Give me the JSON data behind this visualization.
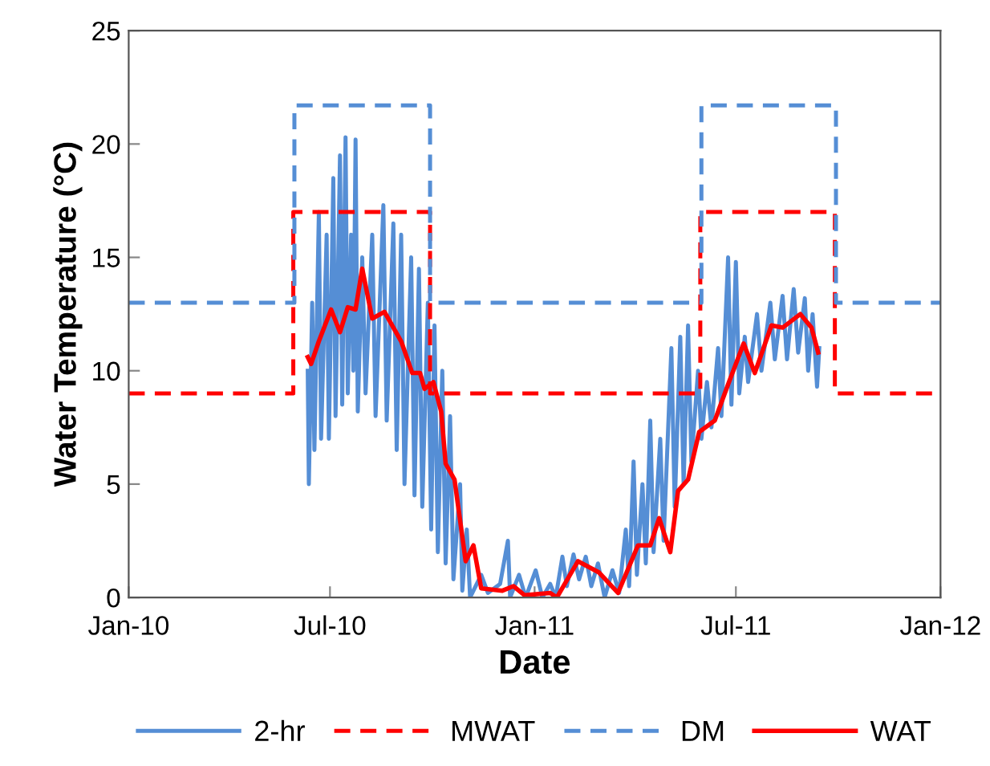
{
  "chart_data": {
    "type": "line",
    "xlabel": "Date",
    "ylabel": "Water Temperature (°C)",
    "xlim": [
      "2010-01-01",
      "2012-01-01"
    ],
    "xticks": [
      {
        "value": "2010-01-01",
        "label": "Jan-10"
      },
      {
        "value": "2010-07-01",
        "label": "Jul-10"
      },
      {
        "value": "2011-01-01",
        "label": "Jan-11"
      },
      {
        "value": "2011-07-01",
        "label": "Jul-11"
      },
      {
        "value": "2012-01-01",
        "label": "Jan-12"
      }
    ],
    "ylim": [
      0,
      25
    ],
    "yticks": [
      0,
      5,
      10,
      15,
      20,
      25
    ],
    "grid": false,
    "legend": "bottom",
    "series": [
      {
        "name": "2-hr",
        "color": "#558ed5",
        "line_style": "solid",
        "x": [
          "2010-06-11",
          "2010-06-12",
          "2010-06-15",
          "2010-06-17",
          "2010-06-21",
          "2010-06-23",
          "2010-06-28",
          "2010-06-30",
          "2010-07-04",
          "2010-07-06",
          "2010-07-10",
          "2010-07-12",
          "2010-07-15",
          "2010-07-17",
          "2010-07-20",
          "2010-07-22",
          "2010-07-24",
          "2010-07-26",
          "2010-07-30",
          "2010-08-02",
          "2010-08-08",
          "2010-08-11",
          "2010-08-18",
          "2010-08-21",
          "2010-08-27",
          "2010-08-30",
          "2010-09-03",
          "2010-09-06",
          "2010-09-12",
          "2010-09-15",
          "2010-09-19",
          "2010-09-22",
          "2010-09-27",
          "2010-09-30",
          "2010-10-03",
          "2010-10-06",
          "2010-10-10",
          "2010-10-13",
          "2010-10-17",
          "2010-10-20",
          "2010-10-26",
          "2010-10-28",
          "2010-11-01",
          "2010-11-04",
          "2010-11-14",
          "2010-11-20",
          "2010-12-01",
          "2010-12-08",
          "2010-12-10",
          "2010-12-18",
          "2010-12-24",
          "2011-01-02",
          "2011-01-08",
          "2011-01-15",
          "2011-01-20",
          "2011-01-26",
          "2011-01-30",
          "2011-02-05",
          "2011-02-10",
          "2011-02-16",
          "2011-02-21",
          "2011-02-27",
          "2011-03-05",
          "2011-03-12",
          "2011-03-18",
          "2011-03-24",
          "2011-03-27",
          "2011-03-31",
          "2011-04-03",
          "2011-04-08",
          "2011-04-11",
          "2011-04-15",
          "2011-04-18",
          "2011-04-24",
          "2011-04-27",
          "2011-05-04",
          "2011-05-07",
          "2011-05-12",
          "2011-05-15",
          "2011-05-19",
          "2011-05-22",
          "2011-05-28",
          "2011-05-31",
          "2011-06-05",
          "2011-06-09",
          "2011-06-15",
          "2011-06-18",
          "2011-06-24",
          "2011-06-27",
          "2011-07-01",
          "2011-07-04",
          "2011-07-09",
          "2011-07-12",
          "2011-07-20",
          "2011-07-24",
          "2011-08-01",
          "2011-08-05",
          "2011-08-12",
          "2011-08-16",
          "2011-08-22",
          "2011-08-26",
          "2011-09-01",
          "2011-09-04",
          "2011-09-08",
          "2011-09-12",
          "2011-09-14"
        ],
        "values": [
          10,
          5,
          13,
          6.5,
          17,
          7,
          16,
          7,
          18.5,
          8,
          19.5,
          8.5,
          20.3,
          9,
          16,
          10,
          20.2,
          8.2,
          15,
          9,
          16,
          8,
          17.3,
          7.8,
          16.5,
          6.5,
          16,
          5,
          15,
          4.5,
          14.5,
          4,
          13,
          3,
          12,
          2,
          10,
          1.5,
          8,
          0.8,
          5,
          0.3,
          3,
          0,
          1,
          0.2,
          0.6,
          2.5,
          0,
          1,
          0,
          1.2,
          0,
          0.6,
          0,
          1.8,
          0.5,
          1.9,
          0.8,
          1.8,
          0.5,
          1.5,
          0,
          1.2,
          0.2,
          3,
          0.5,
          6,
          1,
          5,
          1.5,
          7.8,
          2,
          7,
          2.5,
          11,
          4,
          11.5,
          5,
          12,
          6,
          10,
          7,
          9.5,
          7.5,
          11,
          8,
          15,
          8.5,
          14.8,
          9,
          11.5,
          9.5,
          12.5,
          10,
          13,
          10.5,
          13.3,
          10.5,
          13.6,
          10.8,
          13.2,
          10,
          12.5,
          9.3,
          11
        ]
      },
      {
        "name": "MWAT",
        "color": "#ff0000",
        "type": "step",
        "line_style": "dashed",
        "x": [
          "2010-01-01",
          "2010-05-29",
          "2010-09-29",
          "2011-05-30",
          "2011-09-28",
          "2012-01-01"
        ],
        "values": [
          9,
          17,
          9,
          17,
          9,
          9
        ]
      },
      {
        "name": "DM",
        "color": "#558ed5",
        "type": "step",
        "line_style": "dashed",
        "x": [
          "2010-01-01",
          "2010-05-30",
          "2010-09-29",
          "2011-05-31",
          "2011-09-29",
          "2012-01-01"
        ],
        "values": [
          13,
          21.7,
          13,
          21.7,
          13,
          13
        ]
      },
      {
        "name": "WAT",
        "color": "#ff0000",
        "line_style": "solid",
        "x": [
          "2010-06-11",
          "2010-06-14",
          "2010-06-21",
          "2010-07-02",
          "2010-07-10",
          "2010-07-17",
          "2010-07-24",
          "2010-07-30",
          "2010-08-08",
          "2010-08-19",
          "2010-09-03",
          "2010-09-13",
          "2010-09-20",
          "2010-09-24",
          "2010-10-02",
          "2010-10-09",
          "2010-10-13",
          "2010-10-21",
          "2010-10-31",
          "2010-11-07",
          "2010-11-14",
          "2010-12-03",
          "2010-12-13",
          "2010-12-23",
          "2011-01-15",
          "2011-01-21",
          "2011-02-09",
          "2011-02-28",
          "2011-03-17",
          "2011-04-04",
          "2011-04-15",
          "2011-04-23",
          "2011-05-03",
          "2011-05-10",
          "2011-05-19",
          "2011-05-29",
          "2011-06-12",
          "2011-06-24",
          "2011-07-08",
          "2011-07-18",
          "2011-08-02",
          "2011-08-12",
          "2011-08-28",
          "2011-09-07",
          "2011-09-13"
        ],
        "values": [
          10.6,
          10.3,
          11.3,
          12.7,
          11.7,
          12.8,
          12.7,
          14.5,
          12.3,
          12.6,
          11.3,
          9.9,
          9.9,
          9.2,
          9.5,
          8.2,
          5.9,
          5.2,
          1.6,
          2.3,
          0.4,
          0.3,
          0.5,
          0.1,
          0.2,
          0,
          1.6,
          1.1,
          0.2,
          2.3,
          2.3,
          3.5,
          2.0,
          4.7,
          5.2,
          7.3,
          7.8,
          9.4,
          11.2,
          9.9,
          12.0,
          11.9,
          12.5,
          11.9,
          10.8
        ]
      }
    ]
  }
}
